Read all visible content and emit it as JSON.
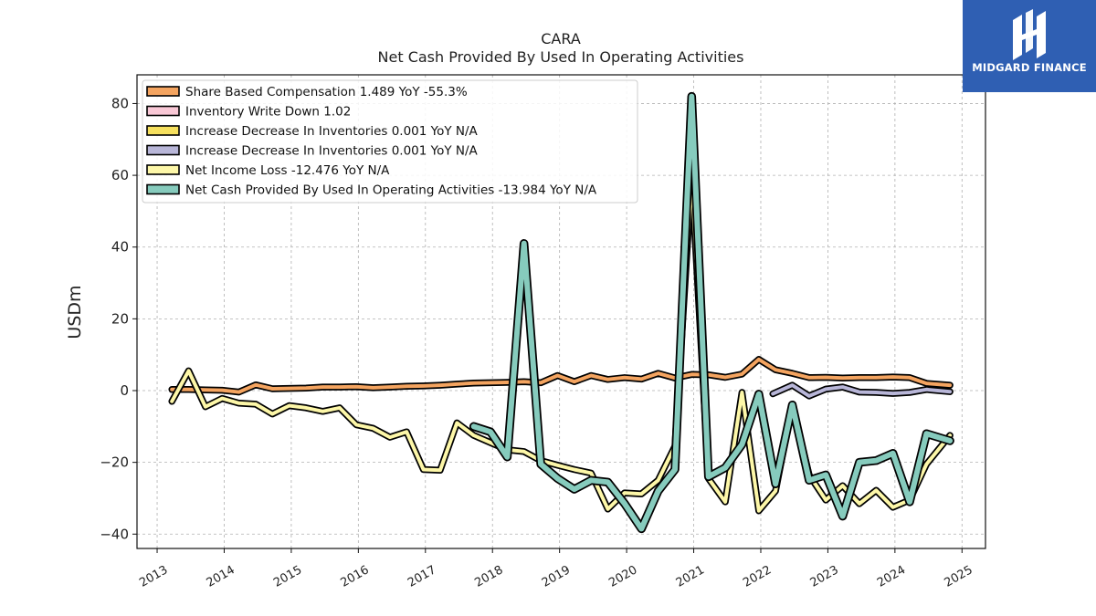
{
  "brand": {
    "name": "MIDGARD FINANCE",
    "bg_color": "#2f5fb3",
    "icon": "midgard-logo-icon"
  },
  "chart_data": {
    "type": "line",
    "title": "CARA",
    "subtitle": "Net Cash Provided By Used In Operating Activities",
    "ylabel": "USDm",
    "xlabel": "",
    "ylim": [
      -44,
      88
    ],
    "xlim": [
      2012.7,
      2025.35
    ],
    "yticks": [
      -40,
      -20,
      0,
      20,
      40,
      60,
      80
    ],
    "ytick_labels": [
      "−40",
      "−20",
      "0",
      "20",
      "40",
      "60",
      "80"
    ],
    "xticks": [
      "2013",
      "2014",
      "2015",
      "2016",
      "2017",
      "2018",
      "2019",
      "2020",
      "2021",
      "2022",
      "2023",
      "2024",
      "2025"
    ],
    "grid": true,
    "legend_position": "top-left",
    "series": [
      {
        "name": "Share Based Compensation  1.489 YoY -55.3%",
        "color": "#f4a460",
        "width": 4,
        "points": [
          [
            2013.22,
            0.3
          ],
          [
            2013.47,
            0.3
          ],
          [
            2013.72,
            0.2
          ],
          [
            2013.97,
            0.1
          ],
          [
            2014.22,
            -0.4
          ],
          [
            2014.47,
            1.6
          ],
          [
            2014.72,
            0.5
          ],
          [
            2014.97,
            0.6
          ],
          [
            2015.22,
            0.7
          ],
          [
            2015.47,
            1.0
          ],
          [
            2015.72,
            1.0
          ],
          [
            2015.97,
            1.1
          ],
          [
            2016.22,
            0.8
          ],
          [
            2016.47,
            1.0
          ],
          [
            2016.72,
            1.2
          ],
          [
            2016.97,
            1.3
          ],
          [
            2017.22,
            1.5
          ],
          [
            2017.47,
            1.8
          ],
          [
            2017.72,
            2.1
          ],
          [
            2017.97,
            2.2
          ],
          [
            2018.22,
            2.3
          ],
          [
            2018.47,
            2.5
          ],
          [
            2018.72,
            2.2
          ],
          [
            2018.97,
            4.2
          ],
          [
            2019.22,
            2.5
          ],
          [
            2019.47,
            4.2
          ],
          [
            2019.72,
            3.1
          ],
          [
            2019.97,
            3.6
          ],
          [
            2020.22,
            3.2
          ],
          [
            2020.47,
            4.8
          ],
          [
            2020.72,
            3.5
          ],
          [
            2020.97,
            4.5
          ],
          [
            2021.22,
            4.4
          ],
          [
            2021.47,
            3.7
          ],
          [
            2021.72,
            4.6
          ],
          [
            2021.97,
            8.7
          ],
          [
            2022.22,
            5.8
          ],
          [
            2022.47,
            4.8
          ],
          [
            2022.72,
            3.6
          ],
          [
            2022.97,
            3.7
          ],
          [
            2023.22,
            3.5
          ],
          [
            2023.47,
            3.6
          ],
          [
            2023.72,
            3.6
          ],
          [
            2023.97,
            3.8
          ],
          [
            2024.22,
            3.6
          ],
          [
            2024.47,
            2.0
          ],
          [
            2024.82,
            1.5
          ]
        ]
      },
      {
        "name": "Inventory Write Down  1.02",
        "color": "#f9c8d6",
        "width": 4,
        "points": []
      },
      {
        "name": "Increase Decrease In Inventories  0.001 YoY N/A",
        "color": "#f6e05e",
        "width": 4,
        "points": []
      },
      {
        "name": "Increase Decrease In Inventories  0.001 YoY N/A",
        "color": "#b8b6d8",
        "width": 4,
        "points": [
          [
            2022.18,
            -0.9
          ],
          [
            2022.47,
            1.5
          ],
          [
            2022.72,
            -1.5
          ],
          [
            2022.97,
            0.4
          ],
          [
            2023.22,
            1.0
          ],
          [
            2023.47,
            -0.4
          ],
          [
            2023.72,
            -0.5
          ],
          [
            2023.97,
            -0.8
          ],
          [
            2024.22,
            -0.5
          ],
          [
            2024.47,
            0.3
          ],
          [
            2024.82,
            -0.3
          ]
        ]
      },
      {
        "name": "Net Income Loss  -12.476 YoY N/A",
        "color": "#fdf7a8",
        "width": 4,
        "points": [
          [
            2013.22,
            -3.0
          ],
          [
            2013.47,
            5.5
          ],
          [
            2013.72,
            -4.5
          ],
          [
            2013.97,
            -2.2
          ],
          [
            2014.22,
            -3.5
          ],
          [
            2014.47,
            -3.8
          ],
          [
            2014.72,
            -6.5
          ],
          [
            2014.97,
            -4.2
          ],
          [
            2015.22,
            -4.8
          ],
          [
            2015.47,
            -5.8
          ],
          [
            2015.72,
            -4.8
          ],
          [
            2015.97,
            -9.5
          ],
          [
            2016.22,
            -10.5
          ],
          [
            2016.47,
            -13.0
          ],
          [
            2016.72,
            -11.5
          ],
          [
            2016.97,
            -22.0
          ],
          [
            2017.22,
            -22.2
          ],
          [
            2017.47,
            -9.0
          ],
          [
            2017.72,
            -12.5
          ],
          [
            2017.97,
            -14.5
          ],
          [
            2018.22,
            -16.5
          ],
          [
            2018.47,
            -17.0
          ],
          [
            2018.72,
            -19.5
          ],
          [
            2018.97,
            -20.8
          ],
          [
            2019.22,
            -22.0
          ],
          [
            2019.47,
            -23.0
          ],
          [
            2019.72,
            -33.0
          ],
          [
            2019.97,
            -28.5
          ],
          [
            2020.22,
            -28.8
          ],
          [
            2020.47,
            -25.0
          ],
          [
            2020.72,
            -15.5
          ],
          [
            2020.97,
            60.0
          ],
          [
            2021.22,
            -24.5
          ],
          [
            2021.47,
            -31.0
          ],
          [
            2021.72,
            -0.5
          ],
          [
            2021.97,
            -33.5
          ],
          [
            2022.22,
            -28.0
          ],
          [
            2022.47,
            -4.0
          ],
          [
            2022.72,
            -23.5
          ],
          [
            2022.97,
            -30.5
          ],
          [
            2023.22,
            -26.5
          ],
          [
            2023.47,
            -31.5
          ],
          [
            2023.72,
            -27.8
          ],
          [
            2023.97,
            -32.5
          ],
          [
            2024.22,
            -30.5
          ],
          [
            2024.47,
            -20.5
          ],
          [
            2024.82,
            -12.5
          ]
        ]
      },
      {
        "name": "Net Cash Provided By Used In Operating Activities  -13.984 YoY N/A",
        "color": "#86cbbd",
        "width": 6,
        "points": [
          [
            2017.72,
            -10.0
          ],
          [
            2017.97,
            -11.5
          ],
          [
            2018.22,
            -18.5
          ],
          [
            2018.47,
            41.0
          ],
          [
            2018.72,
            -20.5
          ],
          [
            2018.97,
            -24.5
          ],
          [
            2019.22,
            -27.5
          ],
          [
            2019.47,
            -25.0
          ],
          [
            2019.72,
            -25.5
          ],
          [
            2019.97,
            -31.5
          ],
          [
            2020.22,
            -38.5
          ],
          [
            2020.47,
            -28.0
          ],
          [
            2020.72,
            -22.0
          ],
          [
            2020.97,
            82.0
          ],
          [
            2021.22,
            -24.0
          ],
          [
            2021.47,
            -21.5
          ],
          [
            2021.72,
            -15.0
          ],
          [
            2021.97,
            -1.0
          ],
          [
            2022.22,
            -26.0
          ],
          [
            2022.47,
            -4.0
          ],
          [
            2022.72,
            -25.0
          ],
          [
            2022.97,
            -23.5
          ],
          [
            2023.22,
            -35.0
          ],
          [
            2023.47,
            -20.0
          ],
          [
            2023.72,
            -19.5
          ],
          [
            2023.97,
            -17.5
          ],
          [
            2024.22,
            -31.0
          ],
          [
            2024.47,
            -12.0
          ],
          [
            2024.82,
            -14.0
          ]
        ]
      }
    ]
  }
}
